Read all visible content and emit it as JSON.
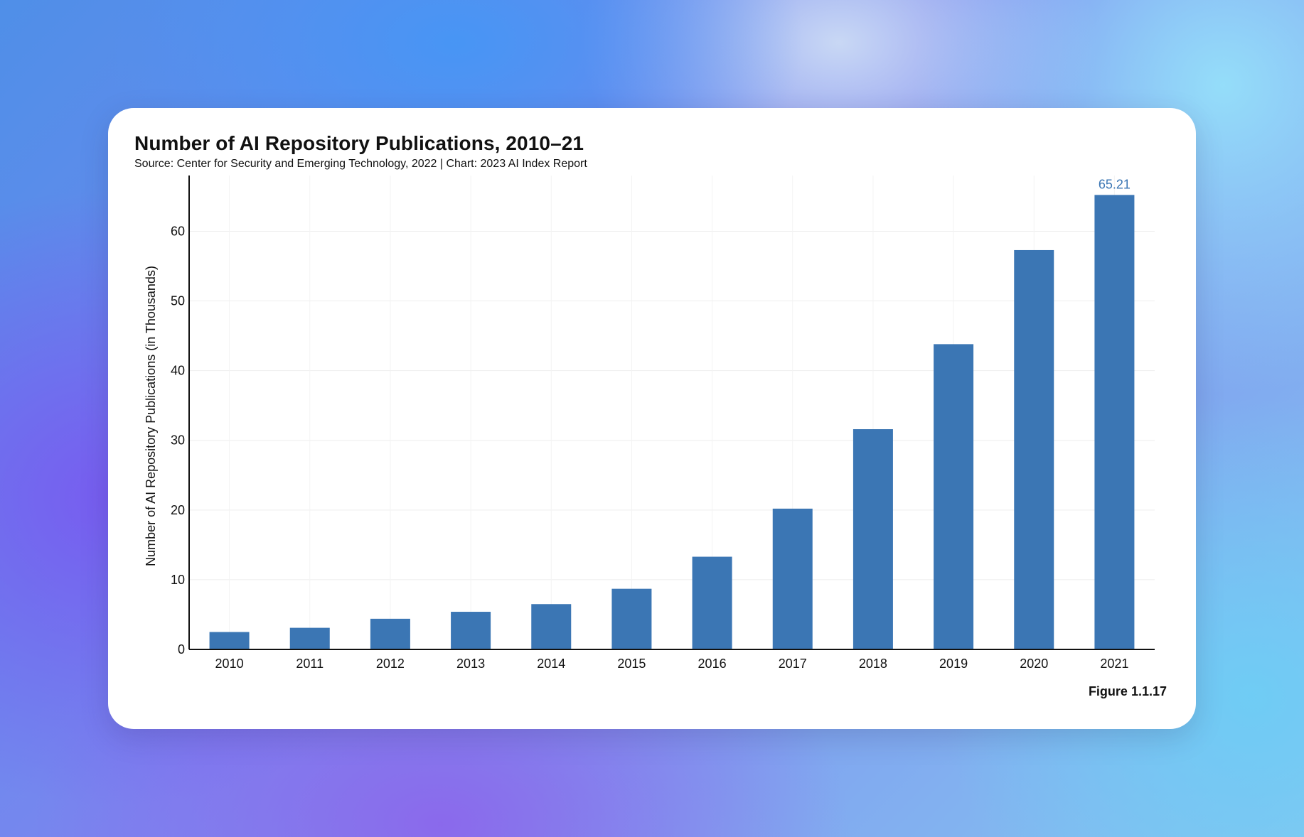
{
  "chart_data": {
    "type": "bar",
    "title": "Number of AI Repository Publications, 2010–21",
    "subtitle": "Source: Center for Security and Emerging Technology, 2022 | Chart: 2023 AI Index Report",
    "xlabel": "",
    "ylabel": "Number of AI Repository Publications (in Thousands)",
    "categories": [
      "2010",
      "2011",
      "2012",
      "2013",
      "2014",
      "2015",
      "2016",
      "2017",
      "2018",
      "2019",
      "2020",
      "2021"
    ],
    "values": [
      2.5,
      3.1,
      4.4,
      5.4,
      6.5,
      8.7,
      13.3,
      20.2,
      31.6,
      43.8,
      57.3,
      65.21
    ],
    "data_labels": [
      {
        "category": "2021",
        "text": "65.21"
      }
    ],
    "ylim": [
      0,
      68
    ],
    "yticks": [
      0,
      10,
      20,
      30,
      40,
      50,
      60
    ],
    "grid": true,
    "bar_color": "#3b76b4",
    "label_color": "#3b76b4"
  },
  "figure_label": "Figure 1.1.17"
}
